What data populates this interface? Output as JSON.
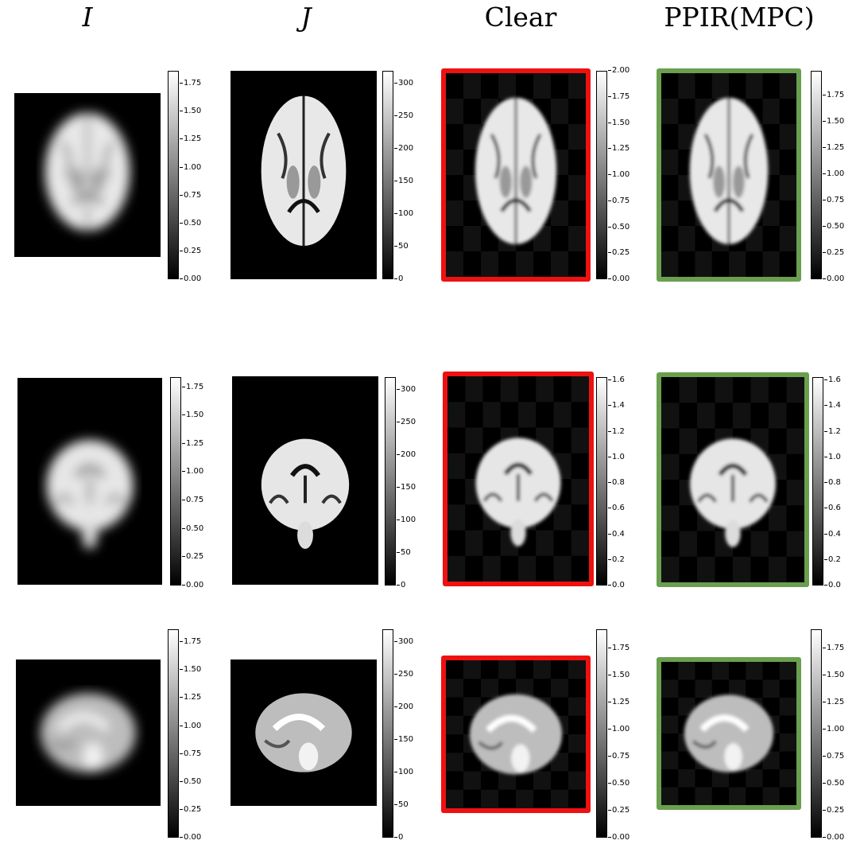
{
  "titles": [
    "I",
    "J",
    "Clear",
    "PPIR(MPC)"
  ],
  "frame_colors": {
    "clear": "#ee1111",
    "ppir": "#6a9f4f"
  },
  "rows": [
    {
      "view": "axial",
      "colorbars": [
        [
          "0.00",
          "0.25",
          "0.50",
          "0.75",
          "1.00",
          "1.25",
          "1.50",
          "1.75"
        ],
        [
          "0",
          "50",
          "100",
          "150",
          "200",
          "250",
          "300"
        ],
        [
          "0.00",
          "0.25",
          "0.50",
          "0.75",
          "1.00",
          "1.25",
          "1.50",
          "1.75",
          "2.00"
        ],
        [
          "0.00",
          "0.25",
          "0.50",
          "0.75",
          "1.00",
          "1.25",
          "1.50",
          "1.75"
        ]
      ]
    },
    {
      "view": "coronal",
      "colorbars": [
        [
          "0.00",
          "0.25",
          "0.50",
          "0.75",
          "1.00",
          "1.25",
          "1.50",
          "1.75"
        ],
        [
          "0",
          "50",
          "100",
          "150",
          "200",
          "250",
          "300"
        ],
        [
          "0.0",
          "0.2",
          "0.4",
          "0.6",
          "0.8",
          "1.0",
          "1.2",
          "1.4",
          "1.6"
        ],
        [
          "0.0",
          "0.2",
          "0.4",
          "0.6",
          "0.8",
          "1.0",
          "1.2",
          "1.4",
          "1.6"
        ]
      ]
    },
    {
      "view": "sagittal",
      "colorbars": [
        [
          "0.00",
          "0.25",
          "0.50",
          "0.75",
          "1.00",
          "1.25",
          "1.50",
          "1.75"
        ],
        [
          "0",
          "50",
          "100",
          "150",
          "200",
          "250",
          "300"
        ],
        [
          "0.00",
          "0.25",
          "0.50",
          "0.75",
          "1.00",
          "1.25",
          "1.50",
          "1.75"
        ],
        [
          "0.00",
          "0.25",
          "0.50",
          "0.75",
          "1.00",
          "1.25",
          "1.50",
          "1.75"
        ]
      ]
    }
  ]
}
